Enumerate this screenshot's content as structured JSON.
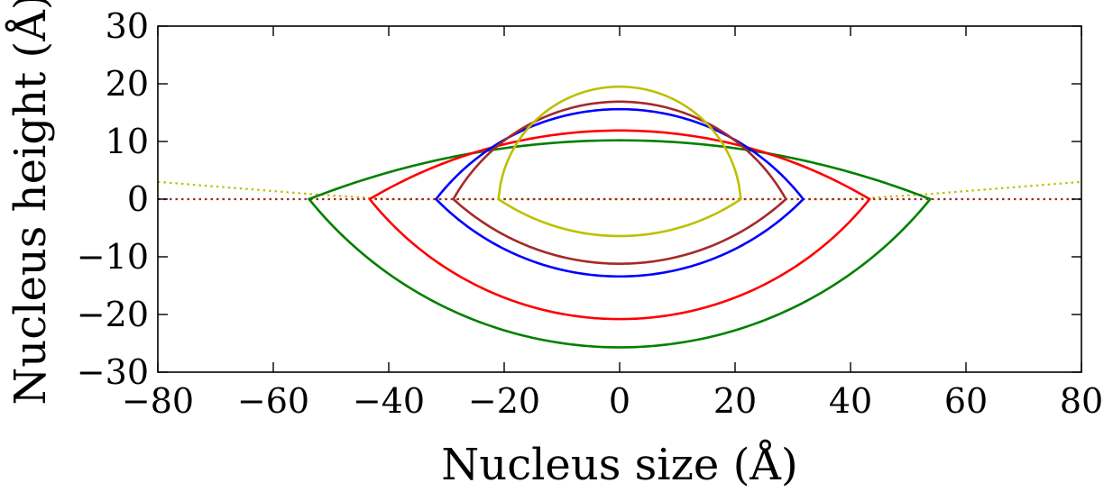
{
  "chart_data": {
    "type": "line",
    "xlabel": "Nucleus size (Å)",
    "ylabel": "Nucleus height (Å)",
    "xlim": [
      -80,
      80
    ],
    "ylim": [
      -30,
      30
    ],
    "xticks": [
      -80,
      -60,
      -40,
      -20,
      0,
      20,
      40,
      60,
      80
    ],
    "yticks": [
      -30,
      -20,
      -10,
      0,
      10,
      20,
      30
    ],
    "xtick_labels": [
      "−80",
      "−60",
      "−40",
      "−20",
      "0",
      "20",
      "40",
      "60",
      "80"
    ],
    "ytick_labels": [
      "−30",
      "−20",
      "−10",
      "0",
      "10",
      "20",
      "30"
    ],
    "grid": false,
    "tick_direction": "in",
    "series": [
      {
        "color": "#008000",
        "half_width": 53.8,
        "top": 10.2,
        "bottom": -25.7
      },
      {
        "color": "#ff0000",
        "half_width": 43.3,
        "top": 11.9,
        "bottom": -20.8
      },
      {
        "color": "#0000ff",
        "half_width": 31.8,
        "top": 15.6,
        "bottom": -13.4
      },
      {
        "color": "#a52a2a",
        "half_width": 28.8,
        "top": 16.9,
        "bottom": -11.2
      },
      {
        "color": "#bfbf00",
        "half_width": 21.0,
        "top": 19.5,
        "bottom": -6.4
      }
    ],
    "reference_lines": [
      {
        "color": "#bfbf00",
        "style": "dotted",
        "points": [
          [
            -80,
            3.0
          ],
          [
            -53.8,
            0.9
          ],
          [
            -40,
            0.0
          ],
          [
            0,
            0.0
          ],
          [
            40,
            0.0
          ],
          [
            53.8,
            0.9
          ],
          [
            80,
            3.0
          ]
        ]
      },
      {
        "color": "#a52a2a",
        "style": "dotted",
        "points": [
          [
            -80,
            0
          ],
          [
            80,
            0
          ]
        ]
      }
    ]
  }
}
